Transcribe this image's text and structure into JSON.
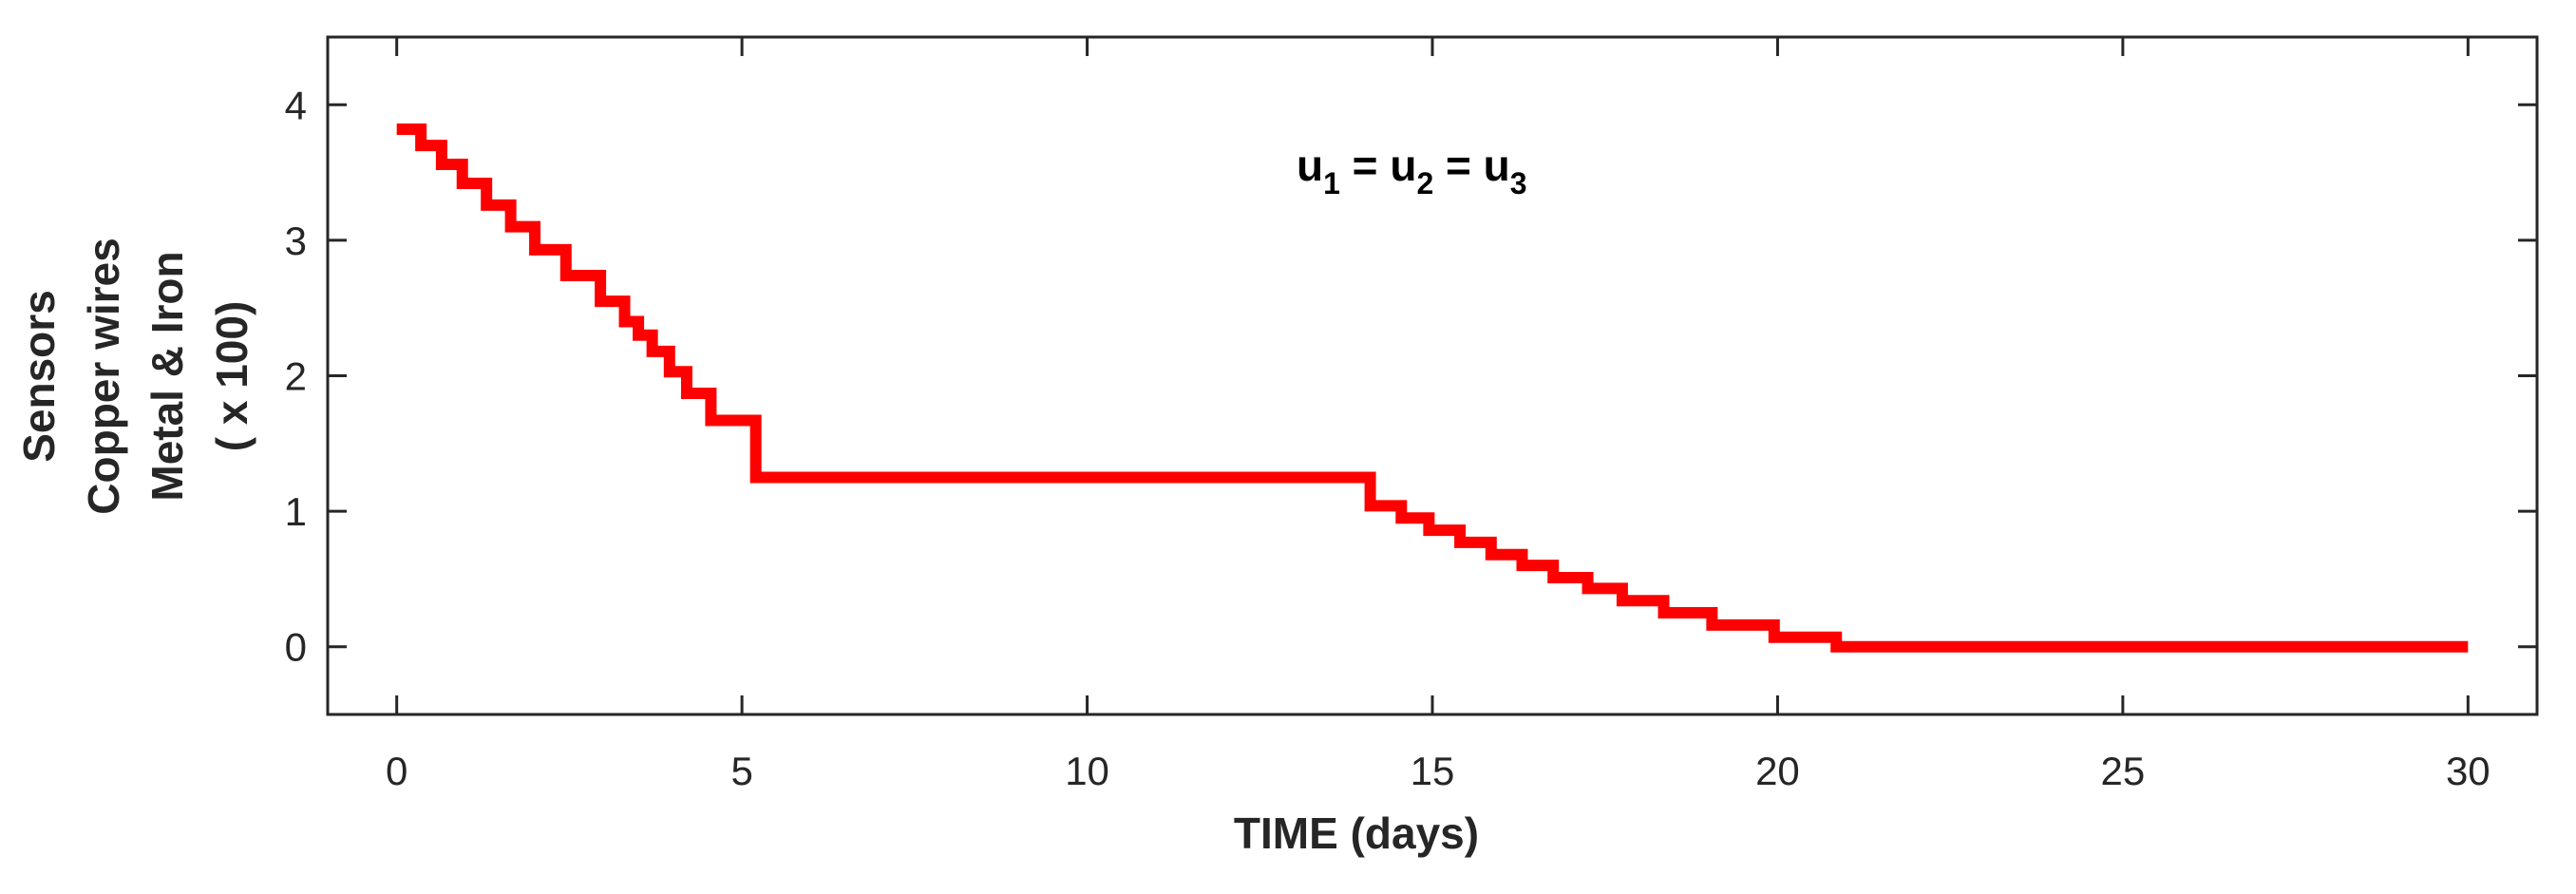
{
  "chart_data": {
    "type": "line",
    "step": true,
    "title": "",
    "xlabel": "TIME (days)",
    "ylabel_lines": [
      "Sensors",
      "Copper wires",
      "Metal & Iron",
      "( x 100)"
    ],
    "xlim": [
      -1,
      31
    ],
    "ylim": [
      -0.5,
      4.5
    ],
    "xticks": [
      0,
      5,
      10,
      15,
      20,
      25,
      30
    ],
    "yticks": [
      0,
      1,
      2,
      3,
      4
    ],
    "grid": false,
    "annotation": {
      "parts": [
        {
          "text": "u",
          "sub": "1"
        },
        {
          "text": " = u",
          "sub": "2"
        },
        {
          "text": " = u",
          "sub": "3"
        }
      ]
    },
    "series": [
      {
        "color": "#ff0000",
        "x": [
          0,
          0.35,
          0.65,
          0.95,
          1.3,
          1.65,
          2.0,
          2.45,
          2.95,
          3.3,
          3.5,
          3.7,
          3.95,
          4.2,
          4.55,
          5.2,
          14.1,
          14.55,
          14.95,
          15.4,
          15.85,
          16.3,
          16.75,
          17.25,
          17.75,
          18.35,
          19.05,
          19.95,
          20.85,
          30
        ],
        "y": [
          3.82,
          3.7,
          3.56,
          3.42,
          3.26,
          3.1,
          2.93,
          2.74,
          2.55,
          2.4,
          2.3,
          2.18,
          2.03,
          1.87,
          1.67,
          1.25,
          1.04,
          0.95,
          0.86,
          0.77,
          0.68,
          0.6,
          0.51,
          0.43,
          0.34,
          0.25,
          0.16,
          0.07,
          0.0,
          0.0
        ]
      }
    ]
  }
}
